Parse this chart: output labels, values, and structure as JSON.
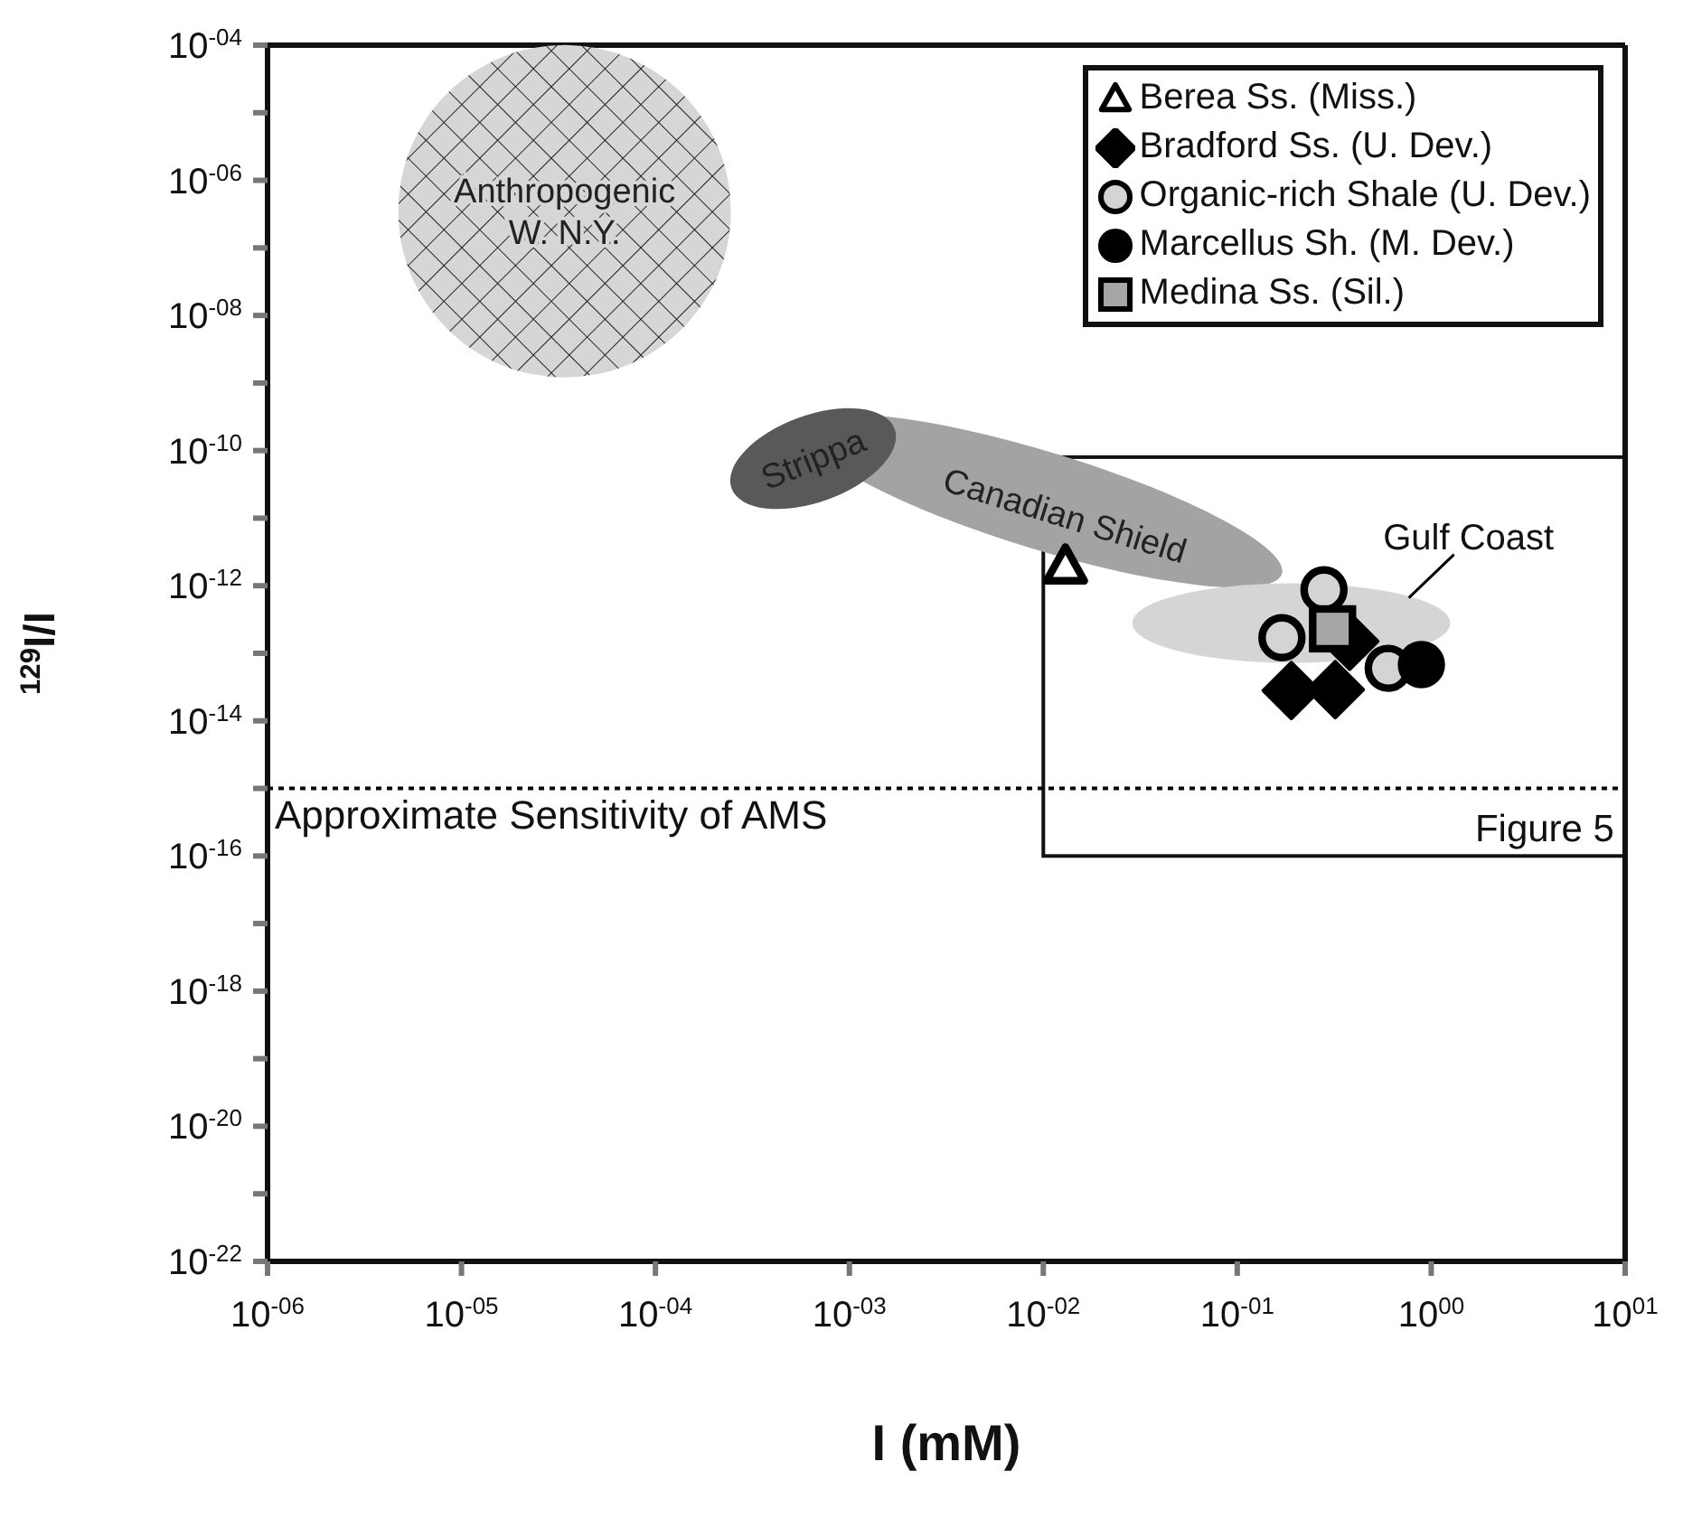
{
  "chart_data": {
    "type": "scatter",
    "xlabel": "I (mM)",
    "ylabel": "$^{129}$I/I",
    "log": "xy",
    "xlim": [
      1e-06,
      10
    ],
    "ylim": [
      1e-22,
      0.0001
    ],
    "xticks": [
      {
        "value": 1e-06,
        "label": "10$^{-06}$"
      },
      {
        "value": 1e-05,
        "label": "10$^{-05}$"
      },
      {
        "value": 0.0001,
        "label": "10$^{-04}$"
      },
      {
        "value": 0.001,
        "label": "10$^{-03}$"
      },
      {
        "value": 0.01,
        "label": "10$^{-02}$"
      },
      {
        "value": 0.1,
        "label": "10$^{-01}$"
      },
      {
        "value": 1,
        "label": "10$^{00}$"
      },
      {
        "value": 10,
        "label": "10$^{01}$"
      }
    ],
    "yticks": [
      {
        "value": 1e-22,
        "label": "10$^{-22}$"
      },
      {
        "value": 1e-21,
        "label": null
      },
      {
        "value": 1e-20,
        "label": "10$^{-20}$"
      },
      {
        "value": 1e-19,
        "label": null
      },
      {
        "value": 1e-18,
        "label": "10$^{-18}$"
      },
      {
        "value": 1e-17,
        "label": null
      },
      {
        "value": 1e-16,
        "label": "10$^{-16}$"
      },
      {
        "value": 1e-15,
        "label": null
      },
      {
        "value": 1e-14,
        "label": "10$^{-14}$"
      },
      {
        "value": 1e-13,
        "label": null
      },
      {
        "value": 1e-12,
        "label": "10$^{-12}$"
      },
      {
        "value": 1e-11,
        "label": null
      },
      {
        "value": 1e-10,
        "label": "10$^{-10}$"
      },
      {
        "value": 1e-09,
        "label": null
      },
      {
        "value": 1e-08,
        "label": "10$^{-08}$"
      },
      {
        "value": 1e-07,
        "label": null
      },
      {
        "value": 1e-06,
        "label": "10$^{-06}$"
      },
      {
        "value": 1e-05,
        "label": null
      },
      {
        "value": 0.0001,
        "label": "10$^{-04}$"
      }
    ],
    "legend": "top right",
    "grid": false,
    "series": [
      {
        "name": "Berea Ss. (Miss.)",
        "marker": "triangle",
        "color": "#ffffff",
        "x": [
          0.013
        ],
        "values": [
          1.9e-12
        ]
      },
      {
        "name": "Bradford Ss. (U. Dev.)",
        "marker": "diamond",
        "color": "#000000",
        "x": [
          0.19,
          0.32,
          0.38
        ],
        "values": [
          2.8e-14,
          2.9e-14,
          1.5e-13
        ]
      },
      {
        "name": "Organic-rich Shale (U. Dev.)",
        "marker": "circle",
        "color": "#d4d4d4",
        "x": [
          0.28,
          0.17,
          0.6
        ],
        "values": [
          8.7e-13,
          1.7e-13,
          6e-14
        ]
      },
      {
        "name": "Marcellus Sh. (M. Dev.)",
        "marker": "circle",
        "color": "#000000",
        "x": [
          0.89
        ],
        "values": [
          6.8e-14
        ]
      },
      {
        "name": "Medina Ss. (Sil.)",
        "marker": "square",
        "color": "#a6a6a6",
        "x": [
          0.31
        ],
        "values": [
          2.3e-13
        ]
      }
    ],
    "ref_lines": [
      {
        "axis": "y",
        "value": 1e-15,
        "label": "Approximate Sensitivity of AMS",
        "line_style": "dotted",
        "color": "#000000"
      }
    ],
    "annotations": [
      "Anthropogenic\nW. N.Y.",
      "Strippa",
      "Canadian Shield",
      "Gulf Coast",
      "Figure 5"
    ]
  }
}
